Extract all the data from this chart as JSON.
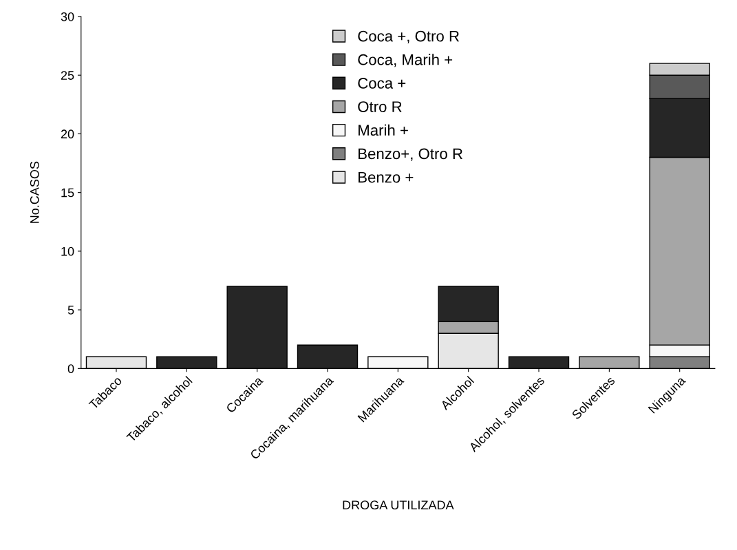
{
  "chart_data": {
    "type": "bar",
    "stacked": true,
    "xlabel": "DROGA UTILIZADA",
    "ylabel": "No.CASOS",
    "categories": [
      "Tabaco",
      "Tabaco, alcohol",
      "Cocaina",
      "Cocaina, marihuana",
      "Marihuana",
      "Alcohol",
      "Alcohol, solventes",
      "Solventes",
      "Ninguna"
    ],
    "series": [
      {
        "name": "Benzo +",
        "color": "#e6e6e6",
        "values": [
          1,
          0,
          0,
          0,
          0,
          3,
          0,
          0,
          0
        ]
      },
      {
        "name": "Benzo+, Otro R",
        "color": "#7f7f7f",
        "values": [
          0,
          0,
          0,
          0,
          0,
          0,
          0,
          0,
          1
        ]
      },
      {
        "name": "Marih +",
        "color": "#f7f7f7",
        "values": [
          0,
          0,
          0,
          0,
          1,
          0,
          0,
          0,
          1
        ]
      },
      {
        "name": "Otro R",
        "color": "#a6a6a6",
        "values": [
          0,
          0,
          0,
          0,
          0,
          1,
          0,
          1,
          16
        ]
      },
      {
        "name": "Coca +",
        "color": "#262626",
        "values": [
          0,
          1,
          7,
          2,
          0,
          3,
          1,
          0,
          5
        ]
      },
      {
        "name": "Coca, Marih +",
        "color": "#595959",
        "values": [
          0,
          0,
          0,
          0,
          0,
          0,
          0,
          0,
          2
        ]
      },
      {
        "name": "Coca +, Otro R",
        "color": "#cccccc",
        "values": [
          0,
          0,
          0,
          0,
          0,
          0,
          0,
          0,
          1
        ]
      }
    ],
    "ylim": [
      0,
      30
    ],
    "yticks": [
      0,
      5,
      10,
      15,
      20,
      25,
      30
    ],
    "grid": false,
    "legend": "top"
  }
}
